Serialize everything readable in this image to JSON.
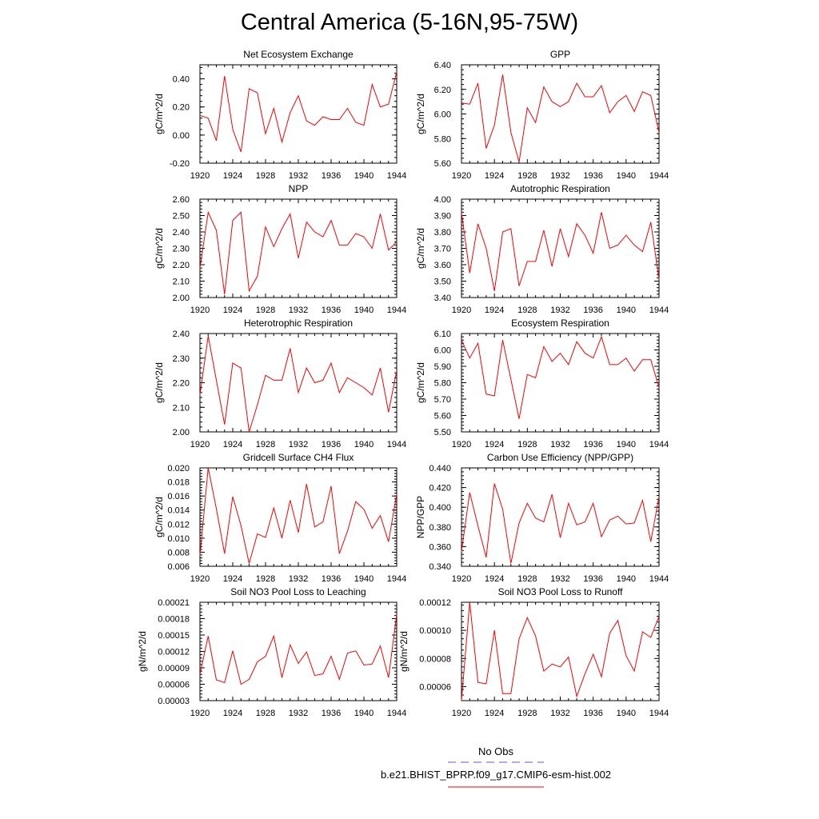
{
  "title": "Central America (5-16N,95-75W)",
  "colors": {
    "series": "#ff0000",
    "obs": "#5a5ae6",
    "frame": "#000000"
  },
  "chart_data": [
    {
      "type": "line",
      "title": "Net Ecosystem Exchange",
      "xlabel": "",
      "ylabel": "gC/m^2/d",
      "xlim": [
        1920,
        1944
      ],
      "ylim": [
        -0.2,
        0.5
      ],
      "xticks": [
        1920,
        1924,
        1928,
        1932,
        1936,
        1940,
        1944
      ],
      "yticks": [
        -0.2,
        0.0,
        0.2,
        0.4
      ],
      "ytick_labels": [
        "-0.20",
        "0.00",
        "0.20",
        "0.40"
      ],
      "x": [
        1920,
        1921,
        1922,
        1923,
        1924,
        1925,
        1926,
        1927,
        1928,
        1929,
        1930,
        1931,
        1932,
        1933,
        1934,
        1935,
        1936,
        1937,
        1938,
        1939,
        1940,
        1941,
        1942,
        1943,
        1944
      ],
      "values": [
        0.14,
        0.12,
        -0.04,
        0.42,
        0.04,
        -0.12,
        0.33,
        0.3,
        0.01,
        0.19,
        -0.05,
        0.16,
        0.28,
        0.1,
        0.07,
        0.13,
        0.11,
        0.11,
        0.19,
        0.09,
        0.07,
        0.36,
        0.2,
        0.22,
        0.45
      ]
    },
    {
      "type": "line",
      "title": "GPP",
      "xlabel": "",
      "ylabel": "gC/m^2/d",
      "xlim": [
        1920,
        1944
      ],
      "ylim": [
        5.6,
        6.4
      ],
      "xticks": [
        1920,
        1924,
        1928,
        1932,
        1936,
        1940,
        1944
      ],
      "yticks": [
        5.6,
        5.8,
        6.0,
        6.2,
        6.4
      ],
      "ytick_labels": [
        "5.60",
        "5.80",
        "6.00",
        "6.20",
        "6.40"
      ],
      "x": [
        1920,
        1921,
        1922,
        1923,
        1924,
        1925,
        1926,
        1927,
        1928,
        1929,
        1930,
        1931,
        1932,
        1933,
        1934,
        1935,
        1936,
        1937,
        1938,
        1939,
        1940,
        1941,
        1942,
        1943,
        1944
      ],
      "values": [
        6.09,
        6.08,
        6.25,
        5.72,
        5.91,
        6.32,
        5.85,
        5.61,
        6.05,
        5.93,
        6.22,
        6.1,
        6.06,
        6.1,
        6.25,
        6.14,
        6.14,
        6.23,
        6.01,
        6.1,
        6.15,
        6.02,
        6.18,
        6.15,
        5.85
      ]
    },
    {
      "type": "line",
      "title": "NPP",
      "xlabel": "",
      "ylabel": "gC/m^2/d",
      "xlim": [
        1920,
        1944
      ],
      "ylim": [
        2.0,
        2.6
      ],
      "xticks": [
        1920,
        1924,
        1928,
        1932,
        1936,
        1940,
        1944
      ],
      "yticks": [
        2.0,
        2.1,
        2.2,
        2.3,
        2.4,
        2.5,
        2.6
      ],
      "ytick_labels": [
        "2.00",
        "2.10",
        "2.20",
        "2.30",
        "2.40",
        "2.50",
        "2.60"
      ],
      "x": [
        1920,
        1921,
        1922,
        1923,
        1924,
        1925,
        1926,
        1927,
        1928,
        1929,
        1930,
        1931,
        1932,
        1933,
        1934,
        1935,
        1936,
        1937,
        1938,
        1939,
        1940,
        1941,
        1942,
        1943,
        1944
      ],
      "values": [
        2.18,
        2.52,
        2.41,
        2.02,
        2.47,
        2.52,
        2.04,
        2.13,
        2.43,
        2.31,
        2.42,
        2.51,
        2.24,
        2.46,
        2.4,
        2.37,
        2.47,
        2.32,
        2.32,
        2.39,
        2.37,
        2.3,
        2.51,
        2.29,
        2.34
      ]
    },
    {
      "type": "line",
      "title": "Autotrophic Respiration",
      "xlabel": "",
      "ylabel": "gC/m^2/d",
      "xlim": [
        1920,
        1944
      ],
      "ylim": [
        3.4,
        4.0
      ],
      "xticks": [
        1920,
        1924,
        1928,
        1932,
        1936,
        1940,
        1944
      ],
      "yticks": [
        3.4,
        3.5,
        3.6,
        3.7,
        3.8,
        3.9,
        4.0
      ],
      "ytick_labels": [
        "3.40",
        "3.50",
        "3.60",
        "3.70",
        "3.80",
        "3.90",
        "4.00"
      ],
      "x": [
        1920,
        1921,
        1922,
        1923,
        1924,
        1925,
        1926,
        1927,
        1928,
        1929,
        1930,
        1931,
        1932,
        1933,
        1934,
        1935,
        1936,
        1937,
        1938,
        1939,
        1940,
        1941,
        1942,
        1943,
        1944
      ],
      "values": [
        3.92,
        3.55,
        3.85,
        3.7,
        3.44,
        3.8,
        3.82,
        3.47,
        3.62,
        3.62,
        3.81,
        3.59,
        3.82,
        3.65,
        3.85,
        3.78,
        3.67,
        3.92,
        3.7,
        3.72,
        3.78,
        3.72,
        3.68,
        3.86,
        3.51
      ]
    },
    {
      "type": "line",
      "title": "Heterotrophic Respiration",
      "xlabel": "",
      "ylabel": "gC/m^2/d",
      "xlim": [
        1920,
        1944
      ],
      "ylim": [
        2.0,
        2.4
      ],
      "xticks": [
        1920,
        1924,
        1928,
        1932,
        1936,
        1940,
        1944
      ],
      "yticks": [
        2.0,
        2.1,
        2.2,
        2.3,
        2.4
      ],
      "ytick_labels": [
        "2.00",
        "2.10",
        "2.20",
        "2.30",
        "2.40"
      ],
      "x": [
        1920,
        1921,
        1922,
        1923,
        1924,
        1925,
        1926,
        1927,
        1928,
        1929,
        1930,
        1931,
        1932,
        1933,
        1934,
        1935,
        1936,
        1937,
        1938,
        1939,
        1940,
        1941,
        1942,
        1943,
        1944
      ],
      "values": [
        2.15,
        2.39,
        2.21,
        2.03,
        2.28,
        2.26,
        2.0,
        2.11,
        2.23,
        2.21,
        2.21,
        2.34,
        2.16,
        2.26,
        2.2,
        2.21,
        2.28,
        2.16,
        2.22,
        2.2,
        2.18,
        2.15,
        2.26,
        2.08,
        2.25
      ]
    },
    {
      "type": "line",
      "title": "Ecosystem Respiration",
      "xlabel": "",
      "ylabel": "gC/m^2/d",
      "xlim": [
        1920,
        1944
      ],
      "ylim": [
        5.5,
        6.1
      ],
      "xticks": [
        1920,
        1924,
        1928,
        1932,
        1936,
        1940,
        1944
      ],
      "yticks": [
        5.5,
        5.6,
        5.7,
        5.8,
        5.9,
        6.0,
        6.1
      ],
      "ytick_labels": [
        "5.50",
        "5.60",
        "5.70",
        "5.80",
        "5.90",
        "6.00",
        "6.10"
      ],
      "x": [
        1920,
        1921,
        1922,
        1923,
        1924,
        1925,
        1926,
        1927,
        1928,
        1929,
        1930,
        1931,
        1932,
        1933,
        1934,
        1935,
        1936,
        1937,
        1938,
        1939,
        1940,
        1941,
        1942,
        1943,
        1944
      ],
      "values": [
        6.06,
        5.95,
        6.04,
        5.73,
        5.72,
        6.06,
        5.82,
        5.58,
        5.85,
        5.83,
        6.02,
        5.93,
        5.98,
        5.91,
        6.05,
        5.98,
        5.95,
        6.08,
        5.91,
        5.91,
        5.95,
        5.87,
        5.94,
        5.94,
        5.77
      ]
    },
    {
      "type": "line",
      "title": "Gridcell Surface CH4 Flux",
      "xlabel": "",
      "ylabel": "gC/m^2/d",
      "xlim": [
        1920,
        1944
      ],
      "ylim": [
        0.006,
        0.02
      ],
      "xticks": [
        1920,
        1924,
        1928,
        1932,
        1936,
        1940,
        1944
      ],
      "yticks": [
        0.006,
        0.008,
        0.01,
        0.012,
        0.014,
        0.016,
        0.018,
        0.02
      ],
      "ytick_labels": [
        "0.006",
        "0.008",
        "0.010",
        "0.012",
        "0.014",
        "0.016",
        "0.018",
        "0.020"
      ],
      "x": [
        1920,
        1921,
        1922,
        1923,
        1924,
        1925,
        1926,
        1927,
        1928,
        1929,
        1930,
        1931,
        1932,
        1933,
        1934,
        1935,
        1936,
        1937,
        1938,
        1939,
        1940,
        1941,
        1942,
        1943,
        1944
      ],
      "values": [
        0.0075,
        0.02,
        0.0142,
        0.0078,
        0.0159,
        0.0118,
        0.0064,
        0.0106,
        0.0101,
        0.0143,
        0.01,
        0.0154,
        0.0108,
        0.0177,
        0.0116,
        0.0123,
        0.0174,
        0.0078,
        0.011,
        0.0152,
        0.0141,
        0.0114,
        0.0132,
        0.0095,
        0.0163
      ]
    },
    {
      "type": "line",
      "title": "Carbon Use Efficiency (NPP/GPP)",
      "xlabel": "",
      "ylabel": "NPP/GPP",
      "xlim": [
        1920,
        1944
      ],
      "ylim": [
        0.34,
        0.44
      ],
      "xticks": [
        1920,
        1924,
        1928,
        1932,
        1936,
        1940,
        1944
      ],
      "yticks": [
        0.34,
        0.36,
        0.38,
        0.4,
        0.42,
        0.44
      ],
      "ytick_labels": [
        "0.340",
        "0.360",
        "0.380",
        "0.400",
        "0.420",
        "0.440"
      ],
      "x": [
        1920,
        1921,
        1922,
        1923,
        1924,
        1925,
        1926,
        1927,
        1928,
        1929,
        1930,
        1931,
        1932,
        1933,
        1934,
        1935,
        1936,
        1937,
        1938,
        1939,
        1940,
        1941,
        1942,
        1943,
        1944
      ],
      "values": [
        0.355,
        0.415,
        0.381,
        0.349,
        0.424,
        0.398,
        0.343,
        0.384,
        0.404,
        0.389,
        0.385,
        0.413,
        0.369,
        0.404,
        0.382,
        0.385,
        0.404,
        0.37,
        0.387,
        0.391,
        0.383,
        0.384,
        0.407,
        0.365,
        0.411
      ]
    },
    {
      "type": "line",
      "title": "Soil NO3 Pool Loss to Leaching",
      "xlabel": "",
      "ylabel": "gN/m^2/d",
      "xlim": [
        1920,
        1944
      ],
      "ylim": [
        3e-05,
        0.00021
      ],
      "xticks": [
        1920,
        1924,
        1928,
        1932,
        1936,
        1940,
        1944
      ],
      "yticks": [
        3e-05,
        6e-05,
        9e-05,
        0.00012,
        0.00015,
        0.00018,
        0.00021
      ],
      "ytick_labels": [
        "0.00003",
        "0.00006",
        "0.00009",
        "0.00012",
        "0.00015",
        "0.00018",
        "0.00021"
      ],
      "x": [
        1920,
        1921,
        1922,
        1923,
        1924,
        1925,
        1926,
        1927,
        1928,
        1929,
        1930,
        1931,
        1932,
        1933,
        1934,
        1935,
        1936,
        1937,
        1938,
        1939,
        1940,
        1941,
        1942,
        1943,
        1944
      ],
      "values": [
        7.8e-05,
        0.000148,
        6.8e-05,
        6.3e-05,
        0.000121,
        6e-05,
        6.9e-05,
        0.000101,
        0.000111,
        0.000148,
        7.2e-05,
        0.000132,
        9.8e-05,
        0.000119,
        7.6e-05,
        7.9e-05,
        0.000111,
        6.9e-05,
        0.000117,
        0.000121,
        9.5e-05,
        9.7e-05,
        0.00013,
        7.2e-05,
        0.000188
      ]
    },
    {
      "type": "line",
      "title": "Soil NO3 Pool Loss to Runoff",
      "xlabel": "",
      "ylabel": "gN/m^2/d",
      "xlim": [
        1920,
        1944
      ],
      "ylim": [
        5e-05,
        0.00012
      ],
      "xticks": [
        1920,
        1924,
        1928,
        1932,
        1936,
        1940,
        1944
      ],
      "yticks": [
        6e-05,
        8e-05,
        0.0001,
        0.00012
      ],
      "ytick_labels": [
        "0.00006",
        "0.00008",
        "0.00010",
        "0.00012"
      ],
      "x": [
        1920,
        1921,
        1922,
        1923,
        1924,
        1925,
        1926,
        1927,
        1928,
        1929,
        1930,
        1931,
        1932,
        1933,
        1934,
        1935,
        1936,
        1937,
        1938,
        1939,
        1940,
        1941,
        1942,
        1943,
        1944
      ],
      "values": [
        5e-05,
        0.00012,
        6.3e-05,
        6.2e-05,
        0.0001,
        5.5e-05,
        5.5e-05,
        9.4e-05,
        0.000109,
        9.6e-05,
        7.1e-05,
        7.6e-05,
        7.4e-05,
        8.1e-05,
        5.3e-05,
        6.9e-05,
        8.3e-05,
        6.7e-05,
        9.8e-05,
        0.000107,
        8.2e-05,
        7.1e-05,
        9.9e-05,
        9.5e-05,
        0.00011
      ]
    }
  ],
  "legend": {
    "obs_label": "No Obs",
    "model_label": "b.e21.BHIST_BPRP.f09_g17.CMIP6-esm-hist.002"
  }
}
